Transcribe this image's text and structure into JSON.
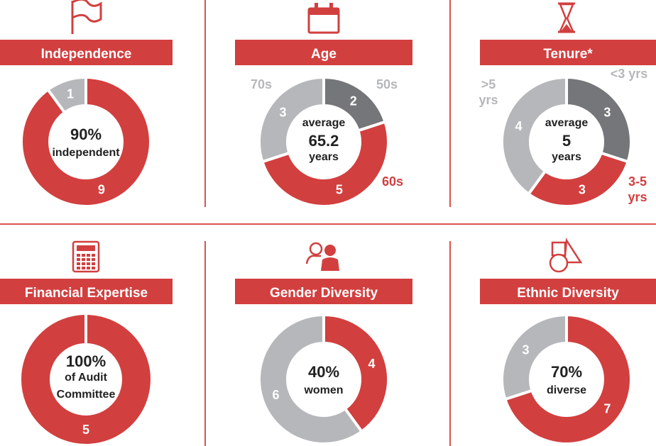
{
  "colors": {
    "red": "#d23f3f",
    "light_gray": "#b6b7ba",
    "dark_gray": "#75767a",
    "divider": "#d9534f"
  },
  "chart_data": [
    {
      "type": "pie",
      "title": "Independence",
      "icon": "flag-icon",
      "slices": [
        {
          "label": "9",
          "value": 9,
          "color": "red"
        },
        {
          "label": "1",
          "value": 1,
          "color": "light_gray"
        }
      ],
      "center": [
        "90%",
        "independent"
      ],
      "outer_labels": []
    },
    {
      "type": "pie",
      "title": "Age",
      "icon": "calendar-icon",
      "slices": [
        {
          "label": "2",
          "value": 2,
          "color": "dark_gray"
        },
        {
          "label": "5",
          "value": 5,
          "color": "red"
        },
        {
          "label": "3",
          "value": 3,
          "color": "light_gray"
        }
      ],
      "center": [
        "average",
        "65.2",
        "years"
      ],
      "outer_labels": [
        {
          "text": "50s",
          "color": "light_gray"
        },
        {
          "text": "60s",
          "color": "red"
        },
        {
          "text": "70s",
          "color": "light_gray"
        }
      ]
    },
    {
      "type": "pie",
      "title": "Tenure*",
      "icon": "hourglass-icon",
      "slices": [
        {
          "label": "3",
          "value": 3,
          "color": "dark_gray"
        },
        {
          "label": "3",
          "value": 3,
          "color": "red"
        },
        {
          "label": "4",
          "value": 4,
          "color": "light_gray"
        }
      ],
      "center": [
        "average",
        "5",
        "years"
      ],
      "outer_labels": [
        {
          "text": "<3 yrs",
          "color": "light_gray"
        },
        {
          "text": "3-5 yrs",
          "color": "red"
        },
        {
          "text": ">5 yrs",
          "color": "light_gray"
        }
      ]
    },
    {
      "type": "pie",
      "title": "Financial Expertise",
      "icon": "calculator-icon",
      "slices": [
        {
          "label": "5",
          "value": 5,
          "color": "red"
        }
      ],
      "center": [
        "100%",
        "of Audit",
        "Committee"
      ],
      "outer_labels": []
    },
    {
      "type": "pie",
      "title": "Gender Diversity",
      "icon": "people-icon",
      "slices": [
        {
          "label": "4",
          "value": 4,
          "color": "red"
        },
        {
          "label": "6",
          "value": 6,
          "color": "light_gray"
        }
      ],
      "center": [
        "40%",
        "women"
      ],
      "outer_labels": []
    },
    {
      "type": "pie",
      "title": "Ethnic Diversity",
      "icon": "shapes-icon",
      "slices": [
        {
          "label": "7",
          "value": 7,
          "color": "red"
        },
        {
          "label": "3",
          "value": 3,
          "color": "light_gray"
        }
      ],
      "center": [
        "70%",
        "diverse"
      ],
      "outer_labels": []
    }
  ]
}
